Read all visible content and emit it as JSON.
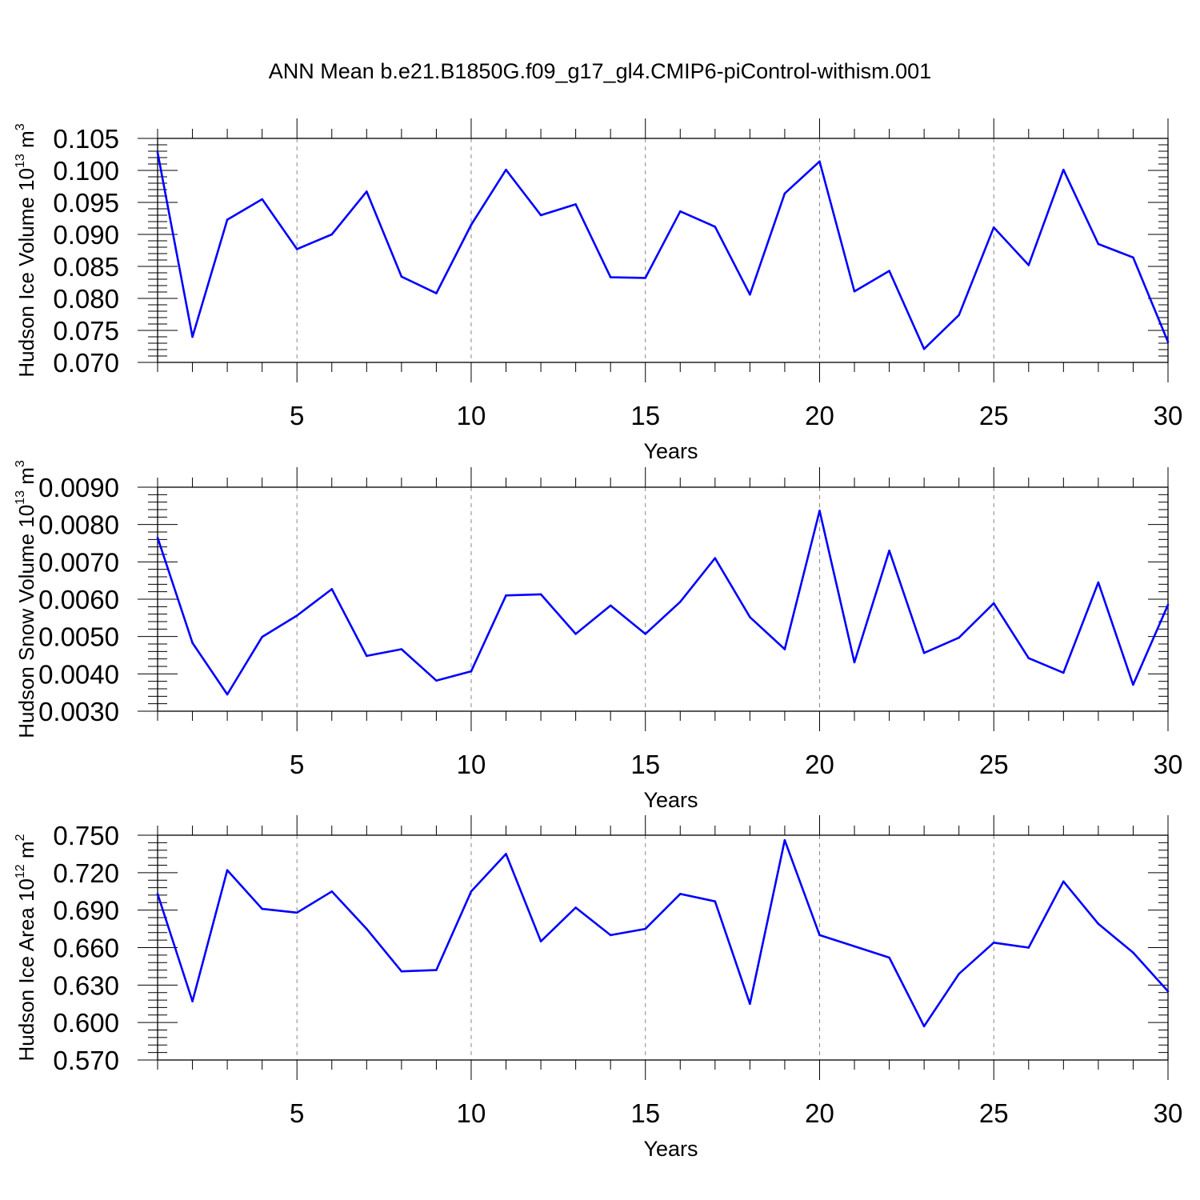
{
  "title": "ANN Mean b.e21.B1850G.f09_g17_gl4.CMIP6-piControl-withism.001",
  "line_color": "#0000ff",
  "chart_data": [
    {
      "type": "line",
      "ylabel": "Hudson Ice Volume 10",
      "ylabel_exp": "13",
      "ylabel_unit": "m",
      "ylabel_unit_exp": "3",
      "xlabel": "Years",
      "xlim": [
        1,
        30
      ],
      "ylim": [
        0.07,
        0.105
      ],
      "xticks": [
        "5",
        "10",
        "15",
        "20",
        "25",
        "30"
      ],
      "yticks": [
        "0.070",
        "0.075",
        "0.080",
        "0.085",
        "0.090",
        "0.095",
        "0.100",
        "0.105"
      ],
      "x": [
        1,
        2,
        3,
        4,
        5,
        6,
        7,
        8,
        9,
        10,
        11,
        12,
        13,
        14,
        15,
        16,
        17,
        18,
        19,
        20,
        21,
        22,
        23,
        24,
        25,
        26,
        27,
        28,
        29,
        30
      ],
      "values": [
        0.1028,
        0.074,
        0.0923,
        0.0955,
        0.0877,
        0.09,
        0.0967,
        0.0834,
        0.0808,
        0.0915,
        0.1001,
        0.093,
        0.0947,
        0.0833,
        0.0832,
        0.0936,
        0.0912,
        0.0806,
        0.0964,
        0.1014,
        0.0811,
        0.0843,
        0.0721,
        0.0774,
        0.0911,
        0.0852,
        0.1001,
        0.0885,
        0.0864,
        0.0732
      ]
    },
    {
      "type": "line",
      "ylabel": "Hudson Snow Volume 10",
      "ylabel_exp": "13",
      "ylabel_unit": "m",
      "ylabel_unit_exp": "3",
      "xlabel": "Years",
      "xlim": [
        1,
        30
      ],
      "ylim": [
        0.003,
        0.009
      ],
      "xticks": [
        "5",
        "10",
        "15",
        "20",
        "25",
        "30"
      ],
      "yticks": [
        "0.0030",
        "0.0040",
        "0.0050",
        "0.0060",
        "0.0070",
        "0.0080",
        "0.0090"
      ],
      "x": [
        1,
        2,
        3,
        4,
        5,
        6,
        7,
        8,
        9,
        10,
        11,
        12,
        13,
        14,
        15,
        16,
        17,
        18,
        19,
        20,
        21,
        22,
        23,
        24,
        25,
        26,
        27,
        28,
        29,
        30
      ],
      "values": [
        0.00765,
        0.00483,
        0.00345,
        0.00499,
        0.00556,
        0.00627,
        0.00448,
        0.00466,
        0.00382,
        0.00407,
        0.0061,
        0.00613,
        0.00507,
        0.00583,
        0.00507,
        0.00593,
        0.0071,
        0.00552,
        0.00466,
        0.00837,
        0.00431,
        0.0073,
        0.00456,
        0.00497,
        0.00589,
        0.00442,
        0.00403,
        0.00645,
        0.00371,
        0.00585
      ]
    },
    {
      "type": "line",
      "ylabel": "Hudson Ice Area 10",
      "ylabel_exp": "12",
      "ylabel_unit": "m",
      "ylabel_unit_exp": "2",
      "xlabel": "Years",
      "xlim": [
        1,
        30
      ],
      "ylim": [
        0.57,
        0.75
      ],
      "xticks": [
        "5",
        "10",
        "15",
        "20",
        "25",
        "30"
      ],
      "yticks": [
        "0.570",
        "0.600",
        "0.630",
        "0.660",
        "0.690",
        "0.720",
        "0.750"
      ],
      "x": [
        1,
        2,
        3,
        4,
        5,
        6,
        7,
        8,
        9,
        10,
        11,
        12,
        13,
        14,
        15,
        16,
        17,
        18,
        19,
        20,
        21,
        22,
        23,
        24,
        25,
        26,
        27,
        28,
        29,
        30
      ],
      "values": [
        0.703,
        0.617,
        0.722,
        0.691,
        0.688,
        0.705,
        0.675,
        0.641,
        0.642,
        0.705,
        0.735,
        0.665,
        0.692,
        0.67,
        0.675,
        0.703,
        0.697,
        0.615,
        0.746,
        0.67,
        0.661,
        0.652,
        0.597,
        0.639,
        0.664,
        0.66,
        0.713,
        0.679,
        0.656,
        0.625
      ]
    }
  ]
}
